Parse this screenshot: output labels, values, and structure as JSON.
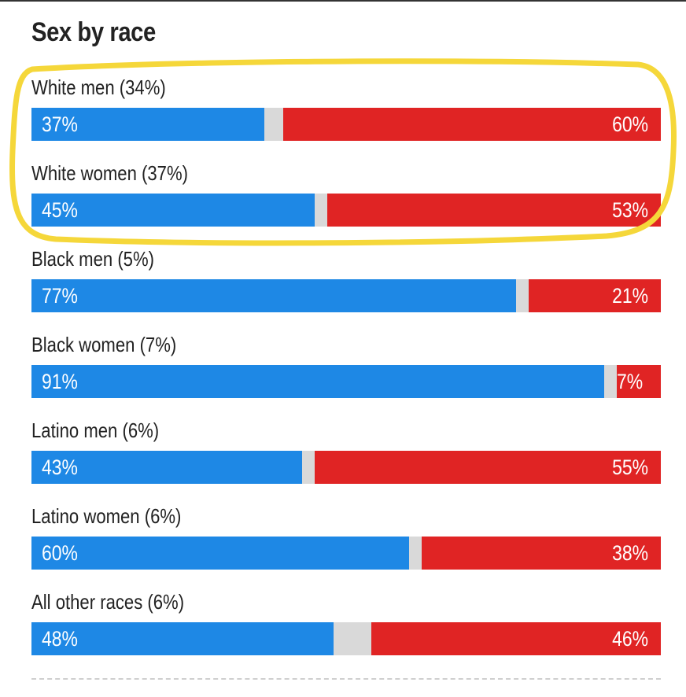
{
  "chart_data": {
    "type": "bar",
    "title": "Sex by race",
    "categories": [
      "White men (34%)",
      "White women (37%)",
      "Black men (5%)",
      "Black women (7%)",
      "Latino men (6%)",
      "Latino women (6%)",
      "All other races (6%)"
    ],
    "series": [
      {
        "values": [
          37,
          45,
          77,
          91,
          43,
          60,
          48
        ],
        "color": "#1e88e5"
      },
      {
        "values": [
          60,
          53,
          21,
          7,
          55,
          38,
          46
        ],
        "color": "#e02424"
      }
    ],
    "remainder_color": "#d9d9d9",
    "value_suffix": "%",
    "stacked": true,
    "xlim": [
      0,
      100
    ],
    "grid": false,
    "annotation": {
      "shape": "rounded-outline",
      "color": "#f5d73a",
      "covers_rows": [
        0,
        1
      ]
    }
  }
}
